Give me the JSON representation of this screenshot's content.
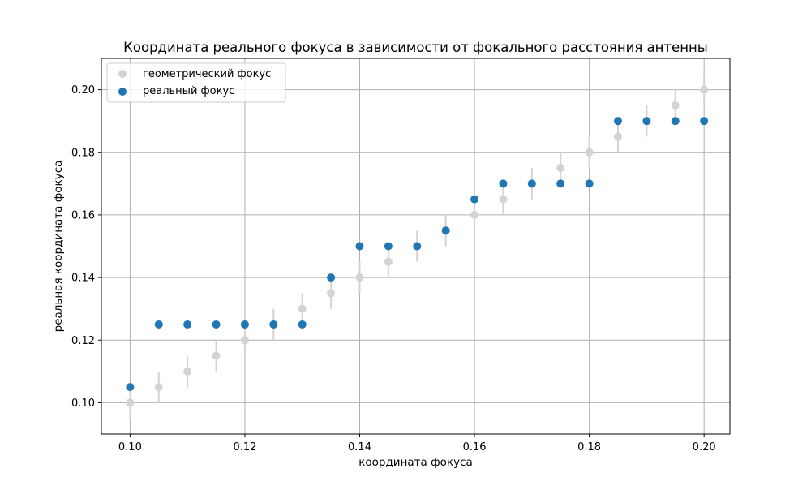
{
  "chart_data": {
    "type": "scatter",
    "title": "Координата реального фокуса в зависимости от фокального расстояния антенны",
    "xlabel": "координата фокуса",
    "ylabel": "реальная координата фокуса",
    "xlim": [
      0.095,
      0.2045
    ],
    "ylim": [
      0.09,
      0.21
    ],
    "xticks": [
      0.1,
      0.12,
      0.14,
      0.16,
      0.18,
      0.2
    ],
    "xtick_labels": [
      "0.10",
      "0.12",
      "0.14",
      "0.16",
      "0.18",
      "0.20"
    ],
    "yticks": [
      0.1,
      0.12,
      0.14,
      0.16,
      0.18,
      0.2
    ],
    "ytick_labels": [
      "0.10",
      "0.12",
      "0.14",
      "0.16",
      "0.18",
      "0.20"
    ],
    "grid": true,
    "legend_position": "top-left",
    "series": [
      {
        "name": "геометрический фокус",
        "color": "#d3d3d3",
        "x": [
          0.1,
          0.105,
          0.11,
          0.115,
          0.12,
          0.125,
          0.13,
          0.135,
          0.14,
          0.145,
          0.15,
          0.155,
          0.16,
          0.165,
          0.17,
          0.175,
          0.18,
          0.185,
          0.19,
          0.195,
          0.2
        ],
        "y": [
          0.1,
          0.105,
          0.11,
          0.115,
          0.12,
          0.125,
          0.13,
          0.135,
          0.14,
          0.145,
          0.15,
          0.155,
          0.16,
          0.165,
          0.17,
          0.175,
          0.18,
          0.185,
          0.19,
          0.195,
          0.2
        ],
        "yerr": 0.005
      },
      {
        "name": "реальный фокус",
        "color": "#1f77b4",
        "x": [
          0.1,
          0.105,
          0.11,
          0.115,
          0.12,
          0.125,
          0.13,
          0.135,
          0.14,
          0.145,
          0.15,
          0.155,
          0.16,
          0.165,
          0.17,
          0.175,
          0.18,
          0.185,
          0.19,
          0.195,
          0.2
        ],
        "y": [
          0.105,
          0.125,
          0.125,
          0.125,
          0.125,
          0.125,
          0.125,
          0.14,
          0.15,
          0.15,
          0.15,
          0.155,
          0.165,
          0.17,
          0.17,
          0.17,
          0.17,
          0.19,
          0.19,
          0.19,
          0.19
        ]
      }
    ]
  }
}
